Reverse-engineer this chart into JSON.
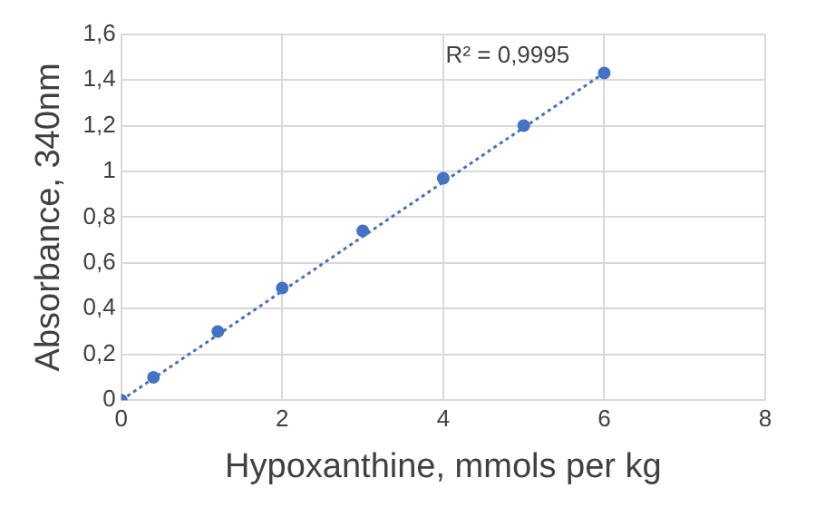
{
  "chart_data": {
    "type": "scatter",
    "xlabel": "Hypoxanthine, mmols per kg",
    "ylabel": "Absorbance, 340nm",
    "annotations": [
      "R² = 0,9995"
    ],
    "xlim": [
      0,
      8
    ],
    "xticks": [
      0,
      2,
      4,
      6,
      8
    ],
    "ylim": [
      0,
      1.6
    ],
    "yticks": [
      0,
      {
        "value": 0.2,
        "label": "0,2"
      },
      {
        "value": 0.4,
        "label": "0,4"
      },
      {
        "value": 0.6,
        "label": "0,6"
      },
      {
        "value": 0.8,
        "label": "0,8"
      },
      1,
      {
        "value": 1.2,
        "label": "1,2"
      },
      {
        "value": 1.4,
        "label": "1,4"
      },
      {
        "value": 1.6,
        "label": "1,6"
      }
    ],
    "grid": true,
    "marker": "circle",
    "series": [
      {
        "color": "#4472c4",
        "x": [
          0,
          0.4,
          1.2,
          2,
          3,
          4,
          5,
          6
        ],
        "values": [
          0,
          0.1,
          0.3,
          0.49,
          0.74,
          0.97,
          1.2,
          1.43
        ]
      },
      {
        "type": "line",
        "color": "#4472c4",
        "line_style": "dotted",
        "marker": "none",
        "x": [
          0,
          6
        ],
        "values": [
          0,
          1.43
        ]
      }
    ]
  }
}
